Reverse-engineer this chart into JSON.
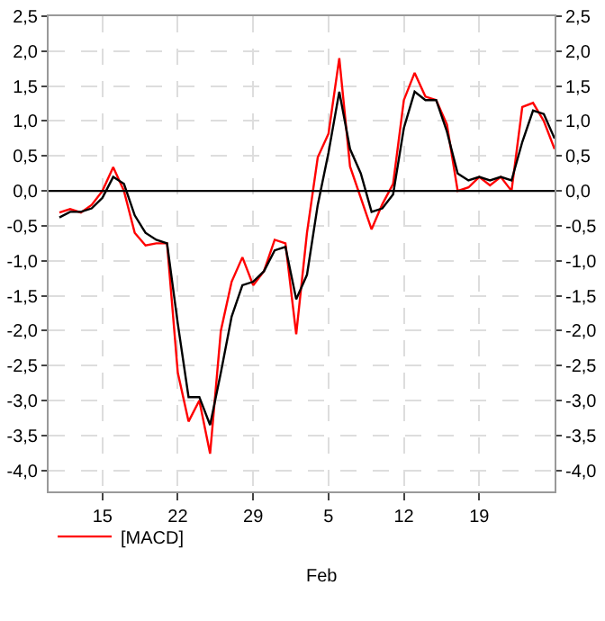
{
  "chart_data": {
    "type": "line",
    "x": [
      "--01-11",
      "--01-12",
      "--01-13",
      "--01-14",
      "--01-15",
      "--01-16",
      "--01-17",
      "--01-18",
      "--01-19",
      "--01-20",
      "--01-21",
      "--01-22",
      "--01-23",
      "--01-24",
      "--01-25",
      "--01-26",
      "--01-27",
      "--01-28",
      "--01-29",
      "--01-30",
      "--01-31",
      "--02-01",
      "--02-02",
      "--02-03",
      "--02-04",
      "--02-05",
      "--02-06",
      "--02-07",
      "--02-08",
      "--02-09",
      "--02-10",
      "--02-11",
      "--02-12",
      "--02-13",
      "--02-14",
      "--02-15",
      "--02-16",
      "--02-17",
      "--02-18",
      "--02-19",
      "--02-20",
      "--02-21",
      "--02-22",
      "--02-23",
      "--02-24",
      "--02-25",
      "--02-26"
    ],
    "series": [
      {
        "name": "[MACD]",
        "color": "#ff0000",
        "values": [
          -0.31,
          -0.26,
          -0.31,
          -0.2,
          0.0,
          0.34,
          0.0,
          -0.6,
          -0.78,
          -0.75,
          -0.75,
          -2.6,
          -3.3,
          -3.0,
          -3.76,
          -2.0,
          -1.3,
          -0.95,
          -1.35,
          -1.15,
          -0.7,
          -0.75,
          -2.05,
          -0.6,
          0.48,
          0.82,
          1.9,
          0.35,
          -0.1,
          -0.55,
          -0.19,
          0.1,
          1.3,
          1.69,
          1.35,
          1.3,
          0.95,
          0.0,
          0.05,
          0.2,
          0.08,
          0.2,
          0.0,
          1.2,
          1.26,
          1.0,
          0.6
        ]
      },
      {
        "color": "#000000",
        "values": [
          -0.38,
          -0.3,
          -0.3,
          -0.25,
          -0.1,
          0.2,
          0.1,
          -0.35,
          -0.6,
          -0.7,
          -0.75,
          -1.9,
          -2.95,
          -2.95,
          -3.35,
          -2.6,
          -1.8,
          -1.35,
          -1.3,
          -1.15,
          -0.85,
          -0.8,
          -1.55,
          -1.2,
          -0.2,
          0.55,
          1.42,
          0.6,
          0.25,
          -0.3,
          -0.25,
          -0.05,
          0.9,
          1.42,
          1.3,
          1.3,
          0.85,
          0.25,
          0.15,
          0.2,
          0.15,
          0.2,
          0.15,
          0.7,
          1.15,
          1.1,
          0.75
        ]
      }
    ],
    "xlim": [
      "--01-10",
      "--02-26"
    ],
    "xticks": [
      {
        "value": "--01-15",
        "label": "15"
      },
      {
        "value": "--01-22",
        "label": "22"
      },
      {
        "value": "--01-29",
        "label": "29"
      },
      {
        "value": "--02-05",
        "label": "5"
      },
      {
        "value": "--02-12",
        "label": "12"
      },
      {
        "value": "--02-19",
        "label": "19"
      }
    ],
    "ylim": [
      -4.3,
      2.5
    ],
    "yticks": [
      {
        "value": -4.0,
        "label": "-4,0"
      },
      {
        "value": -3.5,
        "label": "-3,5"
      },
      {
        "value": -3.0,
        "label": "-3,0"
      },
      {
        "value": -2.5,
        "label": "-2,5"
      },
      {
        "value": -2.0,
        "label": "-2,0"
      },
      {
        "value": -1.5,
        "label": "-1,5"
      },
      {
        "value": -1.0,
        "label": "-1,0"
      },
      {
        "value": -0.5,
        "label": "-0,5"
      },
      {
        "value": 0.0,
        "label": "0,0"
      },
      {
        "value": 0.5,
        "label": "0,5"
      },
      {
        "value": 1.0,
        "label": "1,0"
      },
      {
        "value": 1.5,
        "label": "1,5"
      },
      {
        "value": 2.0,
        "label": "2,0"
      },
      {
        "value": 2.5,
        "label": "2,5"
      }
    ],
    "y2lim": [
      -4.3,
      2.5
    ],
    "y2ticks": [
      {
        "value": -4.0,
        "label": "-4,0"
      },
      {
        "value": -3.5,
        "label": "-3,5"
      },
      {
        "value": -3.0,
        "label": "-3,0"
      },
      {
        "value": -2.5,
        "label": "-2,5"
      },
      {
        "value": -2.0,
        "label": "-2,0"
      },
      {
        "value": -1.5,
        "label": "-1,5"
      },
      {
        "value": -1.0,
        "label": "-1,0"
      },
      {
        "value": -0.5,
        "label": "-0,5"
      },
      {
        "value": 0.0,
        "label": "0,0"
      },
      {
        "value": 0.5,
        "label": "0,5"
      },
      {
        "value": 1.0,
        "label": "1,0"
      },
      {
        "value": 1.5,
        "label": "1,5"
      },
      {
        "value": 2.0,
        "label": "2,0"
      },
      {
        "value": 2.5,
        "label": "2,5"
      }
    ],
    "ref_lines": [
      {
        "axis": "y",
        "value": 0,
        "color": "#000000"
      }
    ],
    "annotations": [
      "Feb"
    ],
    "grid": true,
    "legend": "bottom left",
    "line_style": "solid"
  }
}
